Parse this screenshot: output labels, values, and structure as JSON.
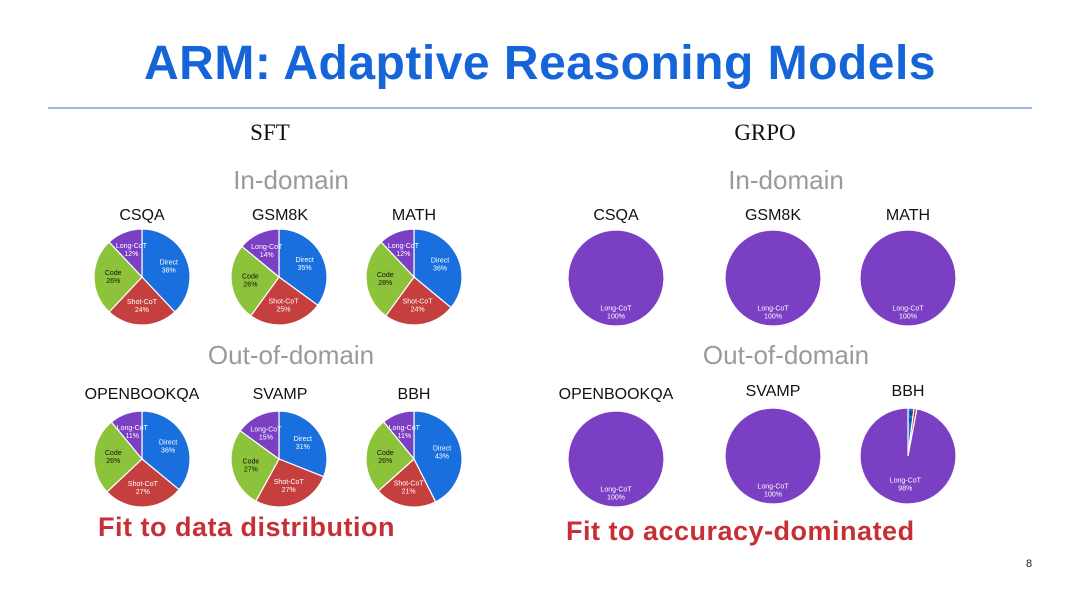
{
  "title": "ARM: Adaptive Reasoning Models",
  "panels": {
    "sft": {
      "label": "SFT",
      "in_domain_label": "In-domain",
      "out_domain_label": "Out-of-domain",
      "takeaway": "Fit to data distribution"
    },
    "grpo": {
      "label": "GRPO",
      "in_domain_label": "In-domain",
      "out_domain_label": "Out-of-domain",
      "takeaway": "Fit to accuracy-dominated"
    }
  },
  "page_number": "8",
  "colors": {
    "Direct": "#1a6fdf",
    "Shot-CoT": "#c63f3f",
    "Code": "#8dc23b",
    "Long-CoT": "#7b3fc4",
    "title": "#1565d8",
    "takeaway": "#c62f36"
  },
  "chart_data": [
    {
      "type": "pie",
      "panel": "SFT",
      "group": "In-domain",
      "title": "CSQA",
      "slices": [
        {
          "label": "Direct",
          "value": 38
        },
        {
          "label": "Shot-CoT",
          "value": 24
        },
        {
          "label": "Code",
          "value": 26
        },
        {
          "label": "Long-CoT",
          "value": 12
        }
      ]
    },
    {
      "type": "pie",
      "panel": "SFT",
      "group": "In-domain",
      "title": "GSM8K",
      "slices": [
        {
          "label": "Direct",
          "value": 35
        },
        {
          "label": "Shot-CoT",
          "value": 25
        },
        {
          "label": "Code",
          "value": 26
        },
        {
          "label": "Long-CoT",
          "value": 14
        }
      ]
    },
    {
      "type": "pie",
      "panel": "SFT",
      "group": "In-domain",
      "title": "MATH",
      "slices": [
        {
          "label": "Direct",
          "value": 36
        },
        {
          "label": "Shot-CoT",
          "value": 24
        },
        {
          "label": "Code",
          "value": 28
        },
        {
          "label": "Long-CoT",
          "value": 12
        }
      ]
    },
    {
      "type": "pie",
      "panel": "SFT",
      "group": "Out-of-domain",
      "title": "OPENBOOKQA",
      "slices": [
        {
          "label": "Direct",
          "value": 36
        },
        {
          "label": "Shot-CoT",
          "value": 27
        },
        {
          "label": "Code",
          "value": 26
        },
        {
          "label": "Long-CoT",
          "value": 11
        }
      ]
    },
    {
      "type": "pie",
      "panel": "SFT",
      "group": "Out-of-domain",
      "title": "SVAMP",
      "slices": [
        {
          "label": "Direct",
          "value": 31
        },
        {
          "label": "Shot-CoT",
          "value": 27
        },
        {
          "label": "Code",
          "value": 27
        },
        {
          "label": "Long-CoT",
          "value": 15
        }
      ]
    },
    {
      "type": "pie",
      "panel": "SFT",
      "group": "Out-of-domain",
      "title": "BBH",
      "slices": [
        {
          "label": "Direct",
          "value": 43
        },
        {
          "label": "Shot-CoT",
          "value": 21
        },
        {
          "label": "Code",
          "value": 26
        },
        {
          "label": "Long-CoT",
          "value": 11
        }
      ]
    },
    {
      "type": "pie",
      "panel": "GRPO",
      "group": "In-domain",
      "title": "CSQA",
      "slices": [
        {
          "label": "Long-CoT",
          "value": 100
        }
      ]
    },
    {
      "type": "pie",
      "panel": "GRPO",
      "group": "In-domain",
      "title": "GSM8K",
      "slices": [
        {
          "label": "Long-CoT",
          "value": 100
        }
      ]
    },
    {
      "type": "pie",
      "panel": "GRPO",
      "group": "In-domain",
      "title": "MATH",
      "slices": [
        {
          "label": "Long-CoT",
          "value": 100
        }
      ]
    },
    {
      "type": "pie",
      "panel": "GRPO",
      "group": "Out-of-domain",
      "title": "OPENBOOKQA",
      "slices": [
        {
          "label": "Long-CoT",
          "value": 100
        }
      ]
    },
    {
      "type": "pie",
      "panel": "GRPO",
      "group": "Out-of-domain",
      "title": "SVAMP",
      "slices": [
        {
          "label": "Long-CoT",
          "value": 100
        }
      ]
    },
    {
      "type": "pie",
      "panel": "GRPO",
      "group": "Out-of-domain",
      "title": "BBH",
      "slices": [
        {
          "label": "Direct",
          "value": 2
        },
        {
          "label": "Shot-CoT",
          "value": 1
        },
        {
          "label": "Long-CoT",
          "value": 98
        }
      ]
    }
  ]
}
